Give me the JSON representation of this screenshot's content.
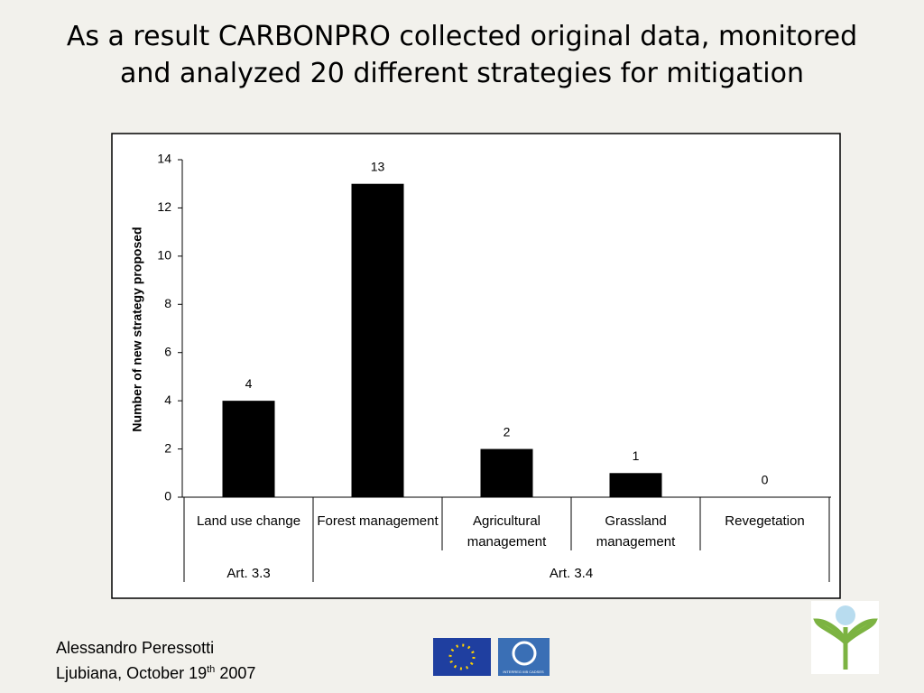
{
  "title": "As a result CARBONPRO collected original data, monitored and analyzed 20 different strategies for mitigation",
  "chart_data": {
    "type": "bar",
    "y_label": "Number of new strategy proposed",
    "categories": [
      "Land use change",
      "Forest management",
      "Agricultural management",
      "Grassland management",
      "Revegetation"
    ],
    "values": [
      4,
      13,
      2,
      1,
      0
    ],
    "color": "#000000",
    "groups": [
      "Art. 3.3",
      "Art. 3.4"
    ],
    "ylim": [
      0,
      14
    ],
    "yticks": [
      0,
      2,
      4,
      6,
      8,
      10,
      12,
      14
    ],
    "grid": false
  },
  "footer": {
    "author": "Alessandro Peressotti",
    "date": {
      "prefix": "Ljubiana, October 19",
      "sup": "th",
      "suffix": " 2007"
    }
  },
  "logos": {
    "interreg": "INTERREG IIIB CADSES"
  }
}
